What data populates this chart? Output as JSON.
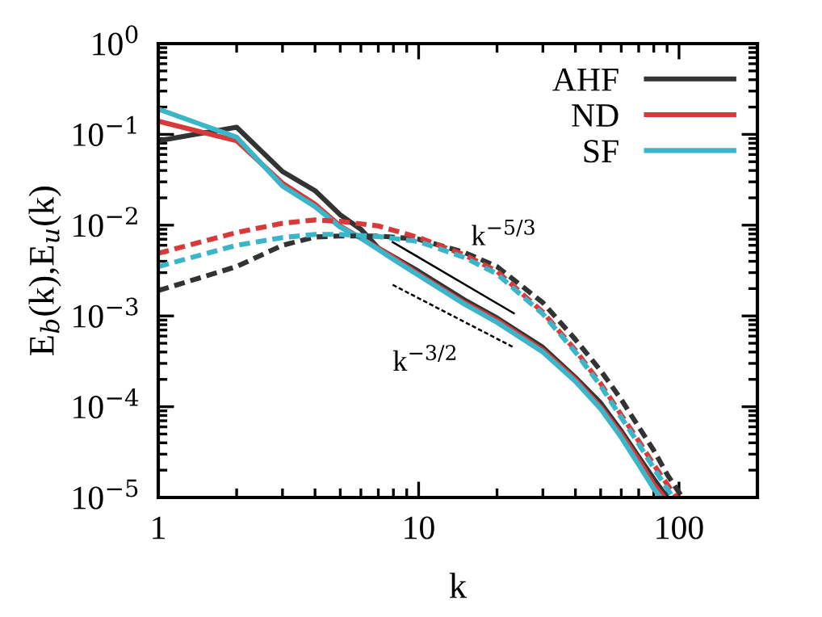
{
  "chart_data": {
    "type": "line",
    "xlabel": "k",
    "ylabel": "E$_{b}$(k),E$_{u}$(k)",
    "log": "xy",
    "xlim": [
      1,
      200
    ],
    "ylim": [
      1e-05,
      1
    ],
    "xticks": [
      1,
      10,
      100
    ],
    "yticks": [
      {
        "value": 1e-05,
        "label": "10$^{−5}$"
      },
      {
        "value": 0.0001,
        "label": "10$^{−4}$"
      },
      {
        "value": 0.001,
        "label": "10$^{−3}$"
      },
      {
        "value": 0.01,
        "label": "10$^{−2}$"
      },
      {
        "value": 0.1,
        "label": "10$^{−1}$"
      },
      {
        "value": 1,
        "label": "10$^{0}$"
      }
    ],
    "grid": false,
    "legend": "top right",
    "marker": "none",
    "series": [
      {
        "name": "AHF",
        "color": "#333333",
        "line_style": "solid",
        "x": [
          1,
          2,
          3,
          4,
          5,
          6,
          7,
          8,
          10,
          15,
          20,
          30,
          40,
          50,
          60,
          70,
          80,
          90
        ],
        "values": [
          0.085,
          0.12,
          0.039,
          0.024,
          0.013,
          0.009,
          0.0056,
          0.0045,
          0.0031,
          0.0015,
          0.00095,
          0.00045,
          0.00021,
          0.00011,
          5.4e-05,
          2.8e-05,
          1.6e-05,
          1e-05
        ]
      },
      {
        "name": "ND",
        "color": "#d83a3a",
        "line_style": "solid",
        "x": [
          1,
          2,
          3,
          4,
          5,
          6,
          7,
          8,
          10,
          15,
          20,
          30,
          40,
          50,
          60,
          70,
          80,
          88
        ],
        "values": [
          0.14,
          0.085,
          0.029,
          0.017,
          0.0098,
          0.0072,
          0.0056,
          0.0044,
          0.0029,
          0.0014,
          0.0009,
          0.00042,
          0.0002,
          0.0001,
          5e-05,
          2.6e-05,
          1.4e-05,
          1e-05
        ]
      },
      {
        "name": "SF",
        "color": "#3bb5c8",
        "line_style": "solid",
        "x": [
          1,
          2,
          3,
          4,
          5,
          6,
          7,
          8,
          10,
          15,
          20,
          30,
          40,
          50,
          60,
          70,
          80,
          85
        ],
        "values": [
          0.19,
          0.093,
          0.027,
          0.016,
          0.0095,
          0.0072,
          0.0054,
          0.0042,
          0.0028,
          0.00135,
          0.00085,
          0.0004,
          0.00019,
          9.5e-05,
          4.6e-05,
          2.3e-05,
          1.25e-05,
          1e-05
        ]
      },
      {
        "color": "#333333",
        "line_style": "dashed",
        "x": [
          1,
          2,
          3,
          4,
          5,
          7,
          10,
          15,
          20,
          30,
          40,
          50,
          60,
          70,
          80,
          90,
          103
        ],
        "values": [
          0.0019,
          0.0035,
          0.006,
          0.0074,
          0.0076,
          0.0076,
          0.007,
          0.005,
          0.0035,
          0.0014,
          0.00055,
          0.00025,
          0.00012,
          6e-05,
          3.3e-05,
          1.8e-05,
          1e-05
        ]
      },
      {
        "color": "#d83a3a",
        "line_style": "dashed",
        "x": [
          1,
          2,
          3,
          4,
          5,
          7,
          10,
          15,
          20,
          30,
          40,
          50,
          60,
          70,
          80,
          90,
          98
        ],
        "values": [
          0.0049,
          0.0083,
          0.0105,
          0.0114,
          0.011,
          0.0098,
          0.0073,
          0.0047,
          0.0031,
          0.0011,
          0.00042,
          0.00018,
          8.1e-05,
          4.2e-05,
          2.3e-05,
          1.4e-05,
          1e-05
        ]
      },
      {
        "color": "#3bb5c8",
        "line_style": "dashed",
        "x": [
          1,
          2,
          3,
          4,
          5,
          7,
          10,
          15,
          20,
          30,
          40,
          50,
          60,
          70,
          80,
          90,
          95
        ],
        "values": [
          0.0035,
          0.006,
          0.0073,
          0.0079,
          0.0079,
          0.0075,
          0.0066,
          0.0044,
          0.0029,
          0.00105,
          0.0004,
          0.00017,
          7.6e-05,
          3.9e-05,
          2.1e-05,
          1.25e-05,
          1e-05
        ]
      },
      {
        "color": "#000000",
        "line_style": "solid",
        "x": [
          7.95,
          23.2
        ],
        "values": [
          0.0065,
          0.00107
        ]
      },
      {
        "color": "#000000",
        "line_style": "dashed",
        "x": [
          7.95,
          23.2
        ],
        "values": [
          0.0022,
          0.00045
        ]
      }
    ],
    "annotations": [
      "k$^{−5/3}$",
      "k$^{−3/2}$"
    ]
  }
}
